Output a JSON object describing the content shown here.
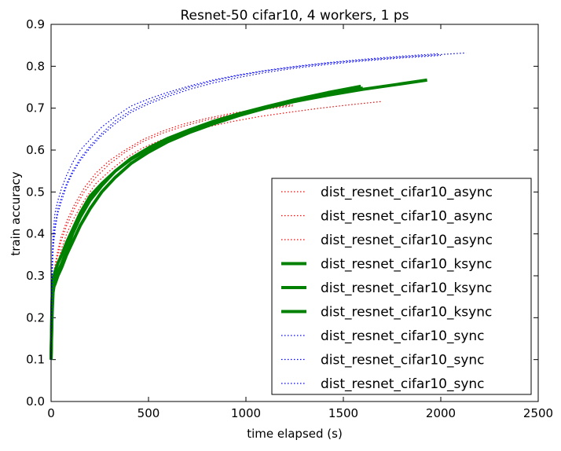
{
  "chart_data": {
    "type": "line",
    "title": "Resnet-50 cifar10, 4 workers, 1 ps",
    "xlabel": "time elapsed (s)",
    "ylabel": "train accuracy",
    "xlim": [
      0,
      2500
    ],
    "ylim": [
      0,
      0.9
    ],
    "xticks": [
      "0",
      "500",
      "1000",
      "1500",
      "2000",
      "2500"
    ],
    "yticks": [
      "0.0",
      "0.1",
      "0.2",
      "0.3",
      "0.4",
      "0.5",
      "0.6",
      "0.7",
      "0.8",
      "0.9"
    ],
    "grid": false,
    "legend_position": "lower-right",
    "series": [
      {
        "name": "dist_resnet_cifar10_async",
        "color": "#ff0000",
        "style": "dotted",
        "x": [
          0,
          5,
          15,
          30,
          50,
          80,
          120,
          170,
          230,
          300,
          380,
          470,
          570,
          680,
          800,
          930,
          1070,
          1220,
          1380,
          1550,
          1700
        ],
        "y": [
          0.1,
          0.22,
          0.28,
          0.32,
          0.36,
          0.4,
          0.44,
          0.48,
          0.52,
          0.55,
          0.58,
          0.605,
          0.625,
          0.642,
          0.655,
          0.668,
          0.68,
          0.69,
          0.7,
          0.709,
          0.716
        ]
      },
      {
        "name": "dist_resnet_cifar10_async",
        "color": "#ff0000",
        "style": "dotted",
        "x": [
          0,
          5,
          15,
          30,
          50,
          80,
          120,
          170,
          230,
          300,
          380,
          470,
          570,
          680,
          800,
          930,
          1070,
          1240
        ],
        "y": [
          0.1,
          0.25,
          0.31,
          0.35,
          0.39,
          0.43,
          0.47,
          0.51,
          0.545,
          0.575,
          0.6,
          0.625,
          0.645,
          0.662,
          0.676,
          0.688,
          0.698,
          0.708
        ]
      },
      {
        "name": "dist_resnet_cifar10_async",
        "color": "#ff0000",
        "style": "dotted",
        "x": [
          0,
          5,
          15,
          30,
          50,
          80,
          120,
          170,
          230,
          300,
          380,
          470,
          570,
          680,
          800,
          930,
          1070,
          1250
        ],
        "y": [
          0.1,
          0.24,
          0.3,
          0.34,
          0.38,
          0.42,
          0.46,
          0.5,
          0.535,
          0.567,
          0.595,
          0.62,
          0.64,
          0.657,
          0.672,
          0.685,
          0.696,
          0.706
        ]
      },
      {
        "name": "dist_resnet_cifar10_ksync",
        "color": "#008000",
        "style": "solid",
        "x": [
          0,
          5,
          10,
          20,
          35,
          55,
          80,
          110,
          150,
          200,
          260,
          330,
          410,
          500,
          600,
          710,
          830,
          960,
          1100,
          1250,
          1420,
          1590
        ],
        "y": [
          0.1,
          0.2,
          0.26,
          0.29,
          0.31,
          0.33,
          0.36,
          0.4,
          0.44,
          0.48,
          0.515,
          0.55,
          0.58,
          0.605,
          0.628,
          0.648,
          0.668,
          0.686,
          0.703,
          0.72,
          0.737,
          0.752
        ]
      },
      {
        "name": "dist_resnet_cifar10_ksync",
        "color": "#008000",
        "style": "solid",
        "x": [
          0,
          5,
          10,
          20,
          35,
          55,
          80,
          110,
          150,
          200,
          260,
          330,
          410,
          500,
          600,
          710,
          830,
          960,
          1100,
          1250,
          1420,
          1600,
          1780,
          1930
        ],
        "y": [
          0.1,
          0.22,
          0.27,
          0.28,
          0.3,
          0.32,
          0.35,
          0.38,
          0.42,
          0.46,
          0.5,
          0.535,
          0.568,
          0.595,
          0.62,
          0.642,
          0.662,
          0.682,
          0.7,
          0.716,
          0.731,
          0.745,
          0.757,
          0.767
        ]
      },
      {
        "name": "dist_resnet_cifar10_ksync",
        "color": "#008000",
        "style": "solid",
        "x": [
          0,
          5,
          10,
          20,
          35,
          55,
          80,
          110,
          150,
          200,
          260,
          330,
          410,
          500,
          600,
          710,
          830,
          960,
          1100,
          1250,
          1420,
          1600
        ],
        "y": [
          0.1,
          0.24,
          0.29,
          0.31,
          0.33,
          0.35,
          0.38,
          0.41,
          0.45,
          0.49,
          0.52,
          0.55,
          0.578,
          0.602,
          0.624,
          0.645,
          0.665,
          0.684,
          0.702,
          0.718,
          0.734,
          0.748
        ]
      },
      {
        "name": "dist_resnet_cifar10_sync",
        "color": "#0000ff",
        "style": "dotted",
        "x": [
          0,
          5,
          10,
          20,
          35,
          55,
          80,
          110,
          150,
          200,
          260,
          330,
          410,
          500,
          600,
          710,
          830,
          960,
          1100,
          1260,
          1430,
          1610,
          1800,
          2000,
          2130
        ],
        "y": [
          0.1,
          0.3,
          0.38,
          0.42,
          0.46,
          0.49,
          0.52,
          0.55,
          0.58,
          0.61,
          0.64,
          0.67,
          0.695,
          0.715,
          0.733,
          0.75,
          0.765,
          0.778,
          0.789,
          0.799,
          0.808,
          0.815,
          0.822,
          0.828,
          0.832
        ]
      },
      {
        "name": "dist_resnet_cifar10_sync",
        "color": "#0000ff",
        "style": "dotted",
        "x": [
          0,
          5,
          10,
          20,
          35,
          55,
          80,
          110,
          150,
          200,
          260,
          330,
          410,
          500,
          600,
          710,
          830,
          960,
          1100,
          1260,
          1430,
          1610,
          1800,
          1990
        ],
        "y": [
          0.1,
          0.32,
          0.4,
          0.45,
          0.48,
          0.51,
          0.54,
          0.57,
          0.6,
          0.625,
          0.655,
          0.68,
          0.705,
          0.722,
          0.738,
          0.753,
          0.767,
          0.779,
          0.79,
          0.8,
          0.809,
          0.817,
          0.824,
          0.83
        ]
      },
      {
        "name": "dist_resnet_cifar10_sync",
        "color": "#0000ff",
        "style": "dotted",
        "x": [
          0,
          5,
          10,
          20,
          35,
          55,
          80,
          110,
          150,
          200,
          260,
          330,
          410,
          500,
          600,
          710,
          830,
          960,
          1100,
          1260,
          1430,
          1610,
          1800,
          2000
        ],
        "y": [
          0.1,
          0.28,
          0.36,
          0.41,
          0.45,
          0.48,
          0.515,
          0.545,
          0.575,
          0.605,
          0.635,
          0.663,
          0.69,
          0.71,
          0.728,
          0.745,
          0.76,
          0.773,
          0.785,
          0.796,
          0.805,
          0.813,
          0.82,
          0.826
        ]
      }
    ]
  }
}
